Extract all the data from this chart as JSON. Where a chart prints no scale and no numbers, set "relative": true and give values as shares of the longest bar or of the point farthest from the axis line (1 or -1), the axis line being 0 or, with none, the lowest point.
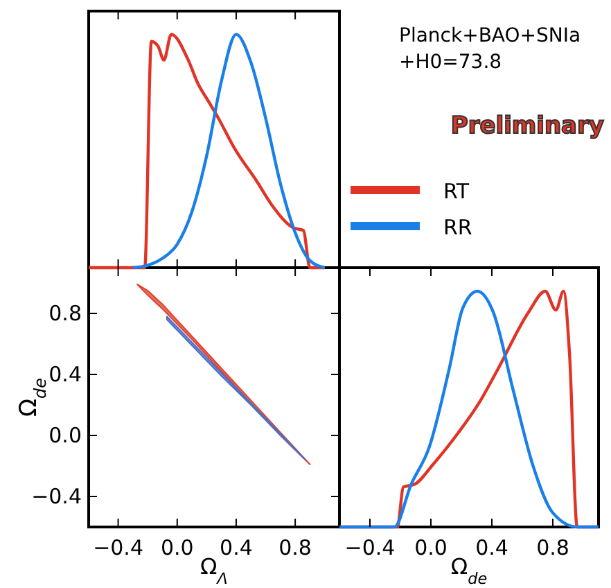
{
  "chart_data": [
    {
      "type": "line",
      "relative": true,
      "xlim": [
        -0.6,
        1.1
      ],
      "xticks": [
        {
          "value": -0.4,
          "label": null
        },
        {
          "value": 0,
          "label": null
        },
        {
          "value": 0.4,
          "label": null
        },
        {
          "value": 0.8,
          "label": null
        }
      ],
      "tick_labels": false,
      "legend": "right",
      "annotations": [
        "Planck+BAO+SNIa\n+H0=73.8",
        "Preliminary"
      ],
      "series": [
        {
          "name": "RT",
          "color": "#e03426",
          "x": [
            -0.6,
            -0.22,
            -0.175,
            -0.13,
            -0.09,
            -0.04,
            0.075,
            0.14,
            0.215,
            0.28,
            0.39,
            0.54,
            0.64,
            0.79,
            0.855,
            0.9,
            1.0
          ],
          "values": [
            0,
            0,
            0.97,
            0.95,
            0.89,
            1.0,
            0.89,
            0.79,
            0.71,
            0.64,
            0.51,
            0.37,
            0.27,
            0.17,
            0.16,
            0,
            0
          ]
        },
        {
          "name": "RR",
          "color": "#1a80e8",
          "x": [
            -0.3,
            -0.2,
            -0.1,
            0,
            0.1,
            0.2,
            0.3,
            0.4,
            0.5,
            0.6,
            0.7,
            0.8,
            0.9,
            1.0
          ],
          "values": [
            0,
            0.01,
            0.04,
            0.1,
            0.24,
            0.48,
            0.8,
            1.0,
            0.88,
            0.64,
            0.36,
            0.15,
            0.03,
            0
          ]
        }
      ]
    },
    {
      "type": "area",
      "xlabel": "Ω$_{Λ}$",
      "ylabel": "Ω$_{de}$",
      "xlim": [
        -0.6,
        1.1
      ],
      "ylim": [
        -0.6,
        1.1
      ],
      "xticks": [
        -0.4,
        {
          "value": 0,
          "label": "0.0"
        },
        0.4,
        0.8
      ],
      "yticks": [
        -0.4,
        {
          "value": 0,
          "label": "0.0"
        },
        0.4,
        0.8
      ],
      "series": [
        {
          "color": "#e0402f",
          "x": [
            -0.27,
            -0.2,
            -0.1,
            0.1,
            0.3,
            0.5,
            0.7,
            0.9,
            0.7,
            0.5,
            0.3,
            0.1,
            -0.1,
            -0.2,
            -0.27
          ],
          "values": [
            0.99,
            0.95,
            0.86,
            0.65,
            0.44,
            0.23,
            0.02,
            -0.19,
            0.0,
            0.21,
            0.42,
            0.63,
            0.83,
            0.92,
            0.99
          ]
        },
        {
          "color": "#4a6fc8",
          "x": [
            -0.07,
            0.1,
            0.3,
            0.5,
            0.7,
            0.87,
            0.7,
            0.5,
            0.3,
            0.1,
            -0.07
          ],
          "values": [
            0.78,
            0.61,
            0.41,
            0.21,
            0.01,
            -0.16,
            0.0,
            0.2,
            0.39,
            0.59,
            0.76
          ]
        }
      ]
    },
    {
      "type": "line",
      "relative": true,
      "xlabel": "Ω$_{de}$",
      "xlim": [
        -0.6,
        1.1
      ],
      "xticks": [
        -0.4,
        {
          "value": 0,
          "label": "0.0"
        },
        0.4,
        0.8
      ],
      "tick_labels": "x",
      "series": [
        {
          "color": "#e03426",
          "x": [
            -0.6,
            -0.22,
            -0.18,
            -0.11,
            0.02,
            0.18,
            0.31,
            0.44,
            0.64,
            0.75,
            0.82,
            0.87,
            0.91,
            0.96,
            1.1
          ],
          "values": [
            0,
            0,
            0.17,
            0.18,
            0.27,
            0.4,
            0.52,
            0.67,
            0.91,
            1.0,
            0.92,
            1.0,
            0.73,
            0,
            0
          ]
        },
        {
          "color": "#1a80e8",
          "x": [
            -0.6,
            -0.24,
            -0.13,
            -0.01,
            0.12,
            0.21,
            0.305,
            0.41,
            0.54,
            0.67,
            0.8,
            0.96,
            1.1
          ],
          "values": [
            0,
            0,
            0.18,
            0.34,
            0.67,
            0.93,
            1.0,
            0.91,
            0.58,
            0.26,
            0.06,
            0,
            0
          ]
        }
      ]
    }
  ]
}
